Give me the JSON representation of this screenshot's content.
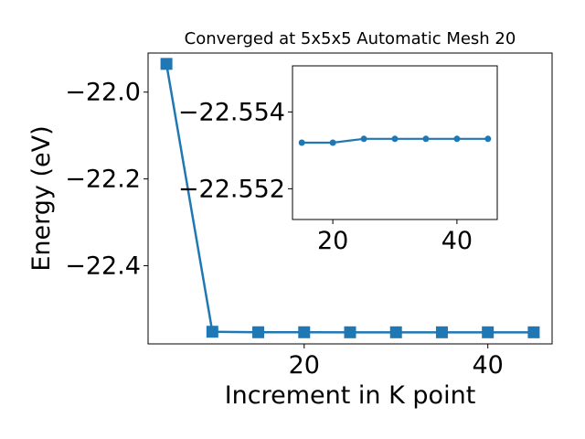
{
  "chart_data": [
    {
      "type": "line",
      "title": "Converged at 5x5x5 Automatic Mesh 20",
      "xlabel": "Increment in K point",
      "ylabel": "Energy (eV)",
      "xlim": [
        3,
        47
      ],
      "ylim": [
        -22.58,
        -21.91
      ],
      "xticks": [
        20,
        40
      ],
      "xtick_labels": [
        "20",
        "40"
      ],
      "yticks": [
        -22.0,
        -22.2,
        -22.4
      ],
      "ytick_labels": [
        "−22.0",
        "−22.2",
        "−22.4"
      ],
      "color": "#1f77b4",
      "marker": "square",
      "grid": false,
      "series": [
        {
          "x": [
            5,
            10,
            15,
            20,
            25,
            30,
            35,
            40,
            45
          ],
          "values": [
            -21.935,
            -22.552,
            -22.5532,
            -22.5532,
            -22.5533,
            -22.5533,
            -22.5533,
            -22.5533,
            -22.5533
          ]
        }
      ]
    },
    {
      "type": "line",
      "title": "",
      "xlabel": "",
      "ylabel": "",
      "xlim": [
        13.5,
        46.5
      ],
      "ylim": [
        -22.5512,
        -22.5552
      ],
      "xticks": [
        20,
        40
      ],
      "xtick_labels": [
        "20",
        "40"
      ],
      "yticks": [
        -22.554,
        -22.552
      ],
      "ytick_labels": [
        "−22.554",
        "−22.552"
      ],
      "color": "#1f77b4",
      "marker": "circle",
      "grid": false,
      "series": [
        {
          "x": [
            15,
            20,
            25,
            30,
            35,
            40,
            45
          ],
          "values": [
            -22.5532,
            -22.5532,
            -22.5533,
            -22.5533,
            -22.5533,
            -22.5533,
            -22.5533
          ]
        }
      ]
    }
  ]
}
